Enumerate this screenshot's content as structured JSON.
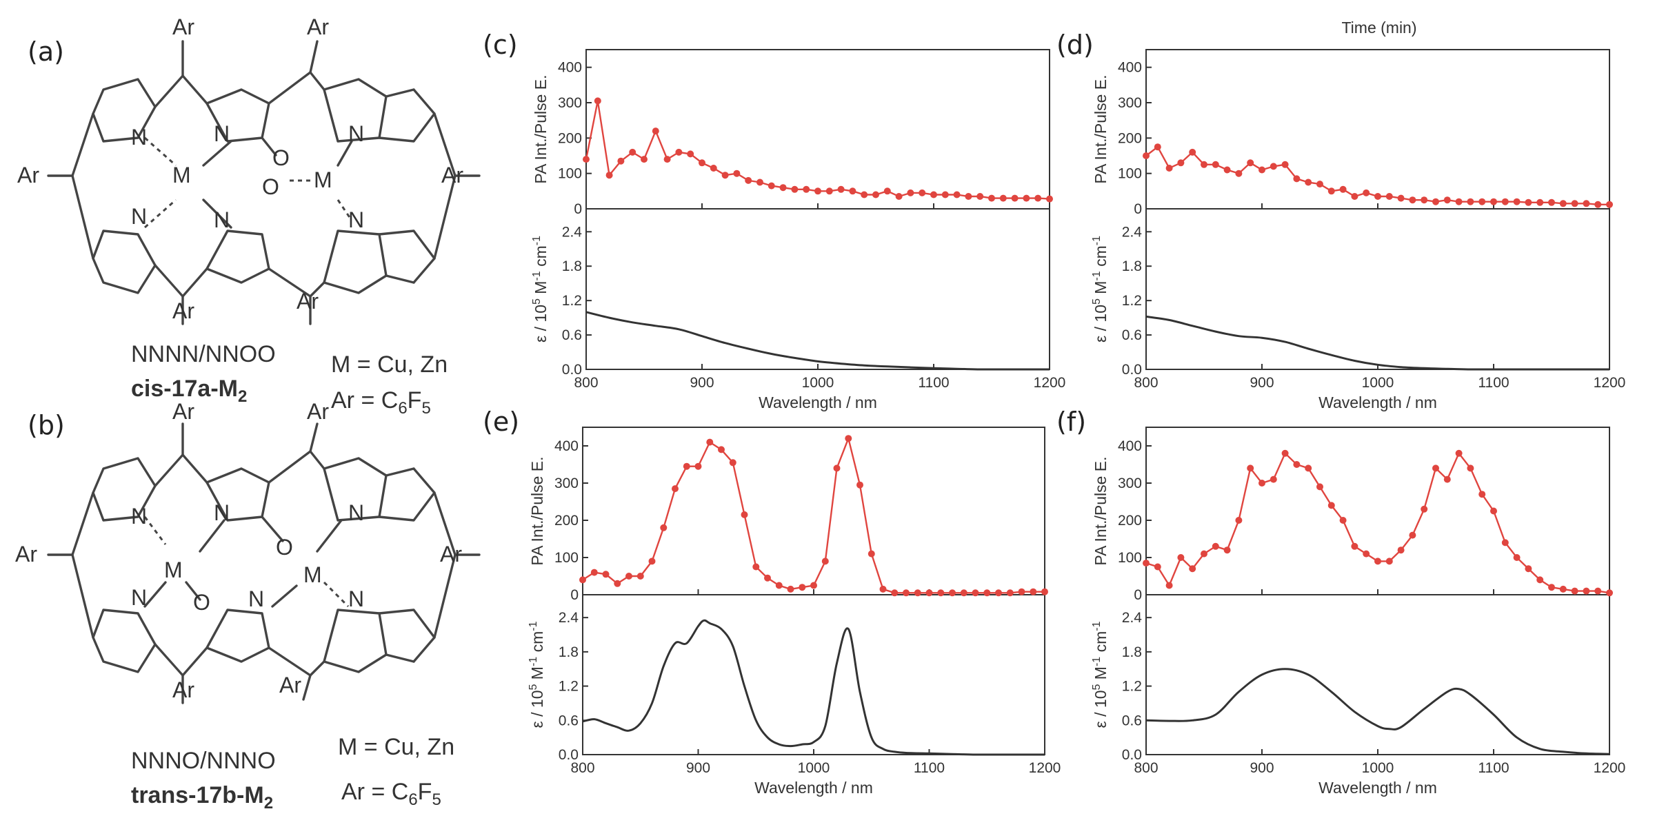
{
  "panel_labels": [
    "(a)",
    "(b)",
    "(c)",
    "(d)",
    "(e)",
    "(f)"
  ],
  "top_label": "Time (min)",
  "molecules": [
    {
      "id": "a",
      "label": "(a)",
      "name_prefix": "cis-17a-M",
      "name_subscript": "2",
      "code": "NNNN/NNOO",
      "metal_text": "M = Cu, Zn",
      "ar_prefix": "Ar = C",
      "ar_sub1": "6",
      "ar_mid": "F",
      "ar_sub2": "5"
    },
    {
      "id": "b",
      "label": "(b)",
      "name_prefix": "trans-17b-M",
      "name_subscript": "2",
      "code": "NNNO/NNNO",
      "metal_text": "M = Cu, Zn",
      "ar_prefix": "Ar = C",
      "ar_sub1": "6",
      "ar_mid": "F",
      "ar_sub2": "5"
    }
  ],
  "atoms": {
    "ar": "Ar",
    "n": "N",
    "m": "M",
    "o": "O"
  },
  "chart_data": [
    {
      "panel": "(c)",
      "type": "line",
      "x_ticks": [
        800,
        900,
        1000,
        1100,
        1200
      ],
      "xlabel": "Wavelength / nm",
      "xlim": [
        800,
        1200
      ],
      "pa": {
        "ylabel": "PA Int./Pulse E.",
        "ylim": [
          0,
          450
        ],
        "y_ticks": [
          0,
          100,
          200,
          300,
          400
        ],
        "x": [
          800,
          810,
          820,
          830,
          840,
          850,
          860,
          870,
          880,
          890,
          900,
          910,
          920,
          930,
          940,
          950,
          960,
          970,
          980,
          990,
          1000,
          1010,
          1020,
          1030,
          1040,
          1050,
          1060,
          1070,
          1080,
          1090,
          1100,
          1110,
          1120,
          1130,
          1140,
          1150,
          1160,
          1170,
          1180,
          1190,
          1200
        ],
        "y": [
          140,
          305,
          95,
          135,
          160,
          140,
          220,
          140,
          160,
          155,
          130,
          115,
          95,
          100,
          80,
          75,
          65,
          60,
          55,
          55,
          50,
          50,
          55,
          50,
          40,
          40,
          50,
          35,
          45,
          45,
          40,
          40,
          40,
          35,
          35,
          30,
          30,
          30,
          30,
          30,
          28
        ]
      },
      "absorption": {
        "ylabel": "ε / 10⁵ M⁻¹ cm⁻¹",
        "ylim": [
          0,
          2.8
        ],
        "y_ticks": [
          "0.0",
          "0.6",
          "1.2",
          "1.8",
          "2.4"
        ],
        "x": [
          800,
          820,
          840,
          860,
          880,
          900,
          920,
          940,
          960,
          980,
          1000,
          1020,
          1040,
          1060,
          1080,
          1100,
          1120,
          1140,
          1160,
          1180,
          1200
        ],
        "y": [
          1.0,
          0.9,
          0.82,
          0.76,
          0.7,
          0.58,
          0.46,
          0.36,
          0.27,
          0.2,
          0.14,
          0.1,
          0.07,
          0.05,
          0.035,
          0.02,
          0.01,
          0.0,
          0.0,
          0.0,
          0.0
        ]
      }
    },
    {
      "panel": "(d)",
      "type": "line",
      "x_ticks": [
        800,
        900,
        1000,
        1100,
        1200
      ],
      "xlabel": "Wavelength / nm",
      "xlim": [
        800,
        1200
      ],
      "pa": {
        "ylabel": "PA Int./Pulse E.",
        "ylim": [
          0,
          450
        ],
        "y_ticks": [
          0,
          100,
          200,
          300,
          400
        ],
        "x": [
          800,
          810,
          820,
          830,
          840,
          850,
          860,
          870,
          880,
          890,
          900,
          910,
          920,
          930,
          940,
          950,
          960,
          970,
          980,
          990,
          1000,
          1010,
          1020,
          1030,
          1040,
          1050,
          1060,
          1070,
          1080,
          1090,
          1100,
          1110,
          1120,
          1130,
          1140,
          1150,
          1160,
          1170,
          1180,
          1190,
          1200
        ],
        "y": [
          150,
          175,
          115,
          130,
          160,
          125,
          125,
          110,
          100,
          130,
          110,
          120,
          125,
          85,
          75,
          70,
          50,
          55,
          35,
          45,
          35,
          35,
          30,
          25,
          25,
          20,
          25,
          20,
          20,
          20,
          20,
          20,
          20,
          18,
          18,
          18,
          15,
          15,
          15,
          12,
          12
        ]
      },
      "absorption": {
        "ylabel": "ε / 10⁵ M⁻¹ cm⁻¹",
        "ylim": [
          0,
          2.8
        ],
        "y_ticks": [
          "0.0",
          "0.6",
          "1.2",
          "1.8",
          "2.4"
        ],
        "x": [
          800,
          820,
          840,
          860,
          880,
          900,
          920,
          940,
          960,
          980,
          1000,
          1020,
          1040,
          1060,
          1080,
          1100,
          1120,
          1140,
          1160,
          1180,
          1200
        ],
        "y": [
          0.92,
          0.86,
          0.76,
          0.66,
          0.58,
          0.55,
          0.48,
          0.36,
          0.25,
          0.15,
          0.08,
          0.04,
          0.02,
          0.01,
          0.0,
          0.0,
          0.0,
          0.0,
          0.0,
          0.0,
          0.0
        ]
      }
    },
    {
      "panel": "(e)",
      "type": "line",
      "x_ticks": [
        800,
        900,
        1000,
        1100,
        1200
      ],
      "xlabel": "Wavelength / nm",
      "xlim": [
        800,
        1200
      ],
      "pa": {
        "ylabel": "PA Int./Pulse E.",
        "ylim": [
          0,
          450
        ],
        "y_ticks": [
          0,
          100,
          200,
          300,
          400
        ],
        "x": [
          800,
          810,
          820,
          830,
          840,
          850,
          860,
          870,
          880,
          890,
          900,
          910,
          920,
          930,
          940,
          950,
          960,
          970,
          980,
          990,
          1000,
          1010,
          1020,
          1030,
          1040,
          1050,
          1060,
          1070,
          1080,
          1090,
          1100,
          1110,
          1120,
          1130,
          1140,
          1150,
          1160,
          1170,
          1180,
          1190,
          1200
        ],
        "y": [
          40,
          60,
          55,
          30,
          50,
          50,
          90,
          180,
          285,
          345,
          345,
          410,
          390,
          355,
          215,
          75,
          45,
          25,
          15,
          20,
          25,
          90,
          340,
          420,
          295,
          110,
          15,
          5,
          5,
          5,
          5,
          5,
          5,
          5,
          5,
          5,
          5,
          5,
          8,
          8,
          8
        ]
      },
      "absorption": {
        "ylabel": "ε / 10⁵ M⁻¹ cm⁻¹",
        "ylim": [
          0,
          2.8
        ],
        "y_ticks": [
          "0.0",
          "0.6",
          "1.2",
          "1.8",
          "2.4"
        ],
        "x": [
          800,
          810,
          820,
          830,
          840,
          850,
          860,
          870,
          880,
          890,
          900,
          905,
          910,
          920,
          930,
          940,
          950,
          960,
          970,
          980,
          990,
          1000,
          1010,
          1020,
          1030,
          1040,
          1050,
          1060,
          1070,
          1080,
          1100,
          1120,
          1140,
          1160,
          1180,
          1200
        ],
        "y": [
          0.58,
          0.62,
          0.55,
          0.48,
          0.42,
          0.55,
          0.9,
          1.55,
          1.95,
          1.95,
          2.25,
          2.35,
          2.3,
          2.2,
          1.9,
          1.2,
          0.6,
          0.3,
          0.18,
          0.15,
          0.18,
          0.22,
          0.5,
          1.6,
          2.2,
          1.1,
          0.3,
          0.1,
          0.05,
          0.03,
          0.02,
          0.01,
          0.0,
          0.0,
          0.0,
          0.0
        ]
      }
    },
    {
      "panel": "(f)",
      "type": "line",
      "x_ticks": [
        800,
        900,
        1000,
        1100,
        1200
      ],
      "xlabel": "Wavelength / nm",
      "xlim": [
        800,
        1200
      ],
      "pa": {
        "ylabel": "PA Int./Pulse E.",
        "ylim": [
          0,
          450
        ],
        "y_ticks": [
          0,
          100,
          200,
          300,
          400
        ],
        "x": [
          800,
          810,
          820,
          830,
          840,
          850,
          860,
          870,
          880,
          890,
          900,
          910,
          920,
          930,
          940,
          950,
          960,
          970,
          980,
          990,
          1000,
          1010,
          1020,
          1030,
          1040,
          1050,
          1060,
          1070,
          1080,
          1090,
          1100,
          1110,
          1120,
          1130,
          1140,
          1150,
          1160,
          1170,
          1180,
          1190,
          1200
        ],
        "y": [
          85,
          75,
          25,
          100,
          70,
          110,
          130,
          120,
          200,
          340,
          300,
          310,
          380,
          350,
          340,
          290,
          240,
          200,
          130,
          110,
          90,
          90,
          120,
          160,
          230,
          340,
          310,
          380,
          340,
          270,
          225,
          140,
          100,
          70,
          40,
          20,
          15,
          10,
          10,
          10,
          5
        ]
      },
      "absorption": {
        "ylabel": "ε / 10⁵ M⁻¹ cm⁻¹",
        "ylim": [
          0,
          2.8
        ],
        "y_ticks": [
          "0.0",
          "0.6",
          "1.2",
          "1.8",
          "2.4"
        ],
        "x": [
          800,
          820,
          840,
          860,
          880,
          900,
          920,
          940,
          960,
          980,
          1000,
          1010,
          1020,
          1040,
          1060,
          1070,
          1080,
          1100,
          1120,
          1140,
          1160,
          1180,
          1200
        ],
        "y": [
          0.6,
          0.59,
          0.6,
          0.7,
          1.1,
          1.4,
          1.5,
          1.4,
          1.1,
          0.75,
          0.5,
          0.45,
          0.48,
          0.8,
          1.1,
          1.15,
          1.05,
          0.7,
          0.3,
          0.1,
          0.05,
          0.02,
          0.01
        ]
      }
    }
  ]
}
